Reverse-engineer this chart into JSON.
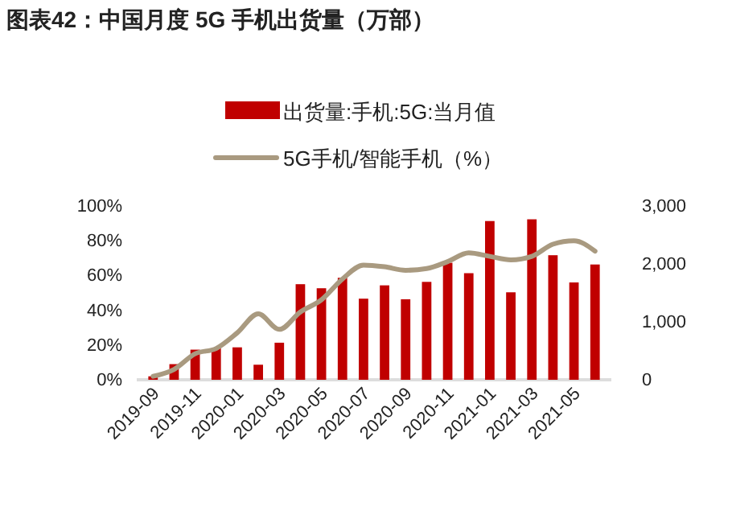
{
  "chart_data": {
    "type": "bar",
    "title": "图表42：中国月度 5G 手机出货量（万部）",
    "categories": [
      "2019-09",
      null,
      "2019-11",
      null,
      "2020-01",
      null,
      "2020-03",
      null,
      "2020-05",
      null,
      "2020-07",
      null,
      "2020-09",
      null,
      "2020-11",
      null,
      "2021-01",
      null,
      "2021-03",
      null,
      "2021-05",
      null
    ],
    "series": [
      {
        "name": "出货量:手机:5G:当月值",
        "axis": "y2",
        "color": "#c00000",
        "values": [
          60,
          270,
          520,
          550,
          560,
          260,
          640,
          1650,
          1580,
          1760,
          1400,
          1630,
          1390,
          1690,
          2020,
          1840,
          2740,
          1510,
          2770,
          2150,
          1680,
          1990
        ]
      },
      {
        "name": "5G手机/智能手机（%）",
        "type": "line",
        "axis": "y",
        "color": "#a99a80",
        "values": [
          2,
          6,
          15,
          18,
          27,
          38,
          29,
          39,
          46,
          58,
          66,
          65,
          63,
          64,
          68,
          73,
          71,
          69,
          71,
          78,
          80,
          74
        ]
      }
    ],
    "ylim": [
      0,
      100
    ],
    "yticks": [
      {
        "value": 0,
        "label": "0%"
      },
      {
        "value": 20,
        "label": "20%"
      },
      {
        "value": 40,
        "label": "40%"
      },
      {
        "value": 60,
        "label": "60%"
      },
      {
        "value": 80,
        "label": "80%"
      },
      {
        "value": 100,
        "label": "100%"
      }
    ],
    "y2lim": [
      0,
      3000
    ],
    "y2ticks": [
      {
        "value": 0,
        "label": "0"
      },
      {
        "value": 1000,
        "label": "1,000"
      },
      {
        "value": 2000,
        "label": "2,000"
      },
      {
        "value": 3000,
        "label": "3,000"
      }
    ],
    "legend": "top",
    "grid": false,
    "marker": "none",
    "line_style": "solid"
  }
}
